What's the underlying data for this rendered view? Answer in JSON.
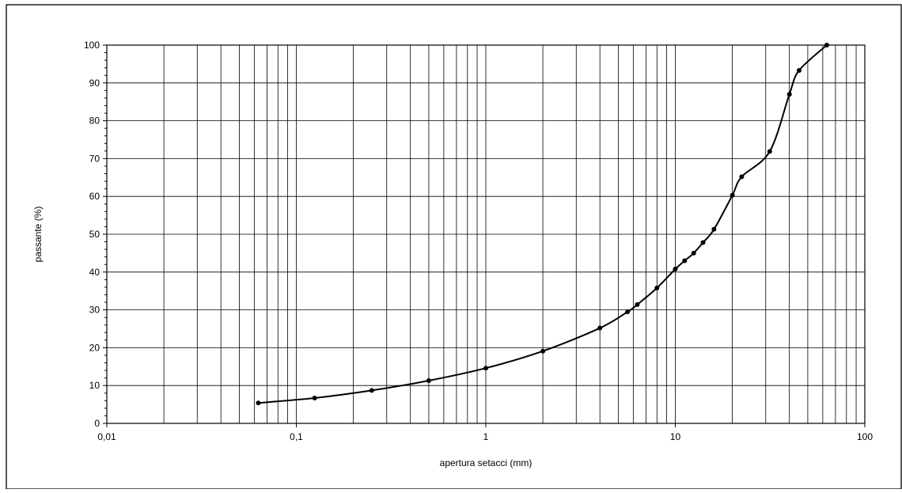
{
  "chart_data": {
    "type": "line",
    "title": "",
    "xlabel": "apertura setacci (mm)",
    "ylabel": "passante (%)",
    "x_scale": "log",
    "xlim": [
      0.01,
      100
    ],
    "ylim": [
      0,
      100
    ],
    "x_ticks": [
      0.01,
      0.1,
      1,
      10,
      100
    ],
    "x_tick_labels": [
      "0,01",
      "0,1",
      "1",
      "10",
      "100"
    ],
    "y_ticks": [
      0,
      10,
      20,
      30,
      40,
      50,
      60,
      70,
      80,
      90,
      100
    ],
    "y_tick_labels": [
      "0",
      "10",
      "20",
      "30",
      "40",
      "50",
      "60",
      "70",
      "80",
      "90",
      "100"
    ],
    "grid": true,
    "legend": "none",
    "line_color": "#000000",
    "series": [
      {
        "x": [
          0.063,
          0.125,
          0.25,
          0.5,
          1,
          2,
          4,
          5.6,
          6.3,
          8,
          10,
          11.2,
          12.5,
          14,
          16,
          20,
          22.4,
          31.5,
          40,
          45,
          63
        ],
        "y": [
          5.4,
          6.7,
          8.7,
          11.3,
          14.6,
          19.1,
          25.2,
          29.5,
          31.4,
          35.8,
          40.8,
          43.0,
          45.0,
          47.8,
          51.3,
          60.3,
          65.2,
          71.9,
          87.0,
          93.3,
          100
        ]
      }
    ]
  }
}
